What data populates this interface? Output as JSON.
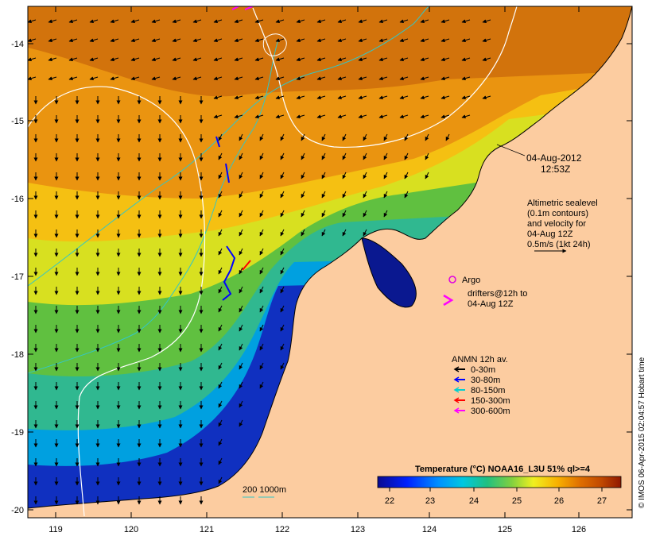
{
  "map": {
    "date_label": "04-Aug-2012",
    "time_label": "12:53Z",
    "lon_ticks": [
      "119",
      "120",
      "121",
      "122",
      "123",
      "124",
      "125",
      "126"
    ],
    "lat_ticks": [
      "-14",
      "-15",
      "-16",
      "-17",
      "-18",
      "-19",
      "-20"
    ],
    "colors": {
      "land": "#fccca0",
      "current_contour": "#ffffff",
      "isobath": "#33c6c6",
      "argo": "#e000e0",
      "drifter": "#ff00ff"
    }
  },
  "altimetry": {
    "lines": [
      "Altimetric sealevel",
      "(0.1m contours)",
      "and velocity for",
      "04-Aug 12Z",
      "0.5m/s (1kt 24h)"
    ]
  },
  "argo": {
    "label": "Argo"
  },
  "drifters": {
    "line1": "drifters@12h to",
    "line2": "04-Aug 12Z"
  },
  "anmn": {
    "title": "ANMN 12h av.",
    "items": [
      {
        "label": "0-30m",
        "color": "#000000"
      },
      {
        "label": "30-80m",
        "color": "#0000ff"
      },
      {
        "label": "80-150m",
        "color": "#00d0d0"
      },
      {
        "label": "150-300m",
        "color": "#ff0000"
      },
      {
        "label": "300-600m",
        "color": "#ff00ff"
      }
    ]
  },
  "isobath_legend": {
    "label": "200  1000m"
  },
  "colorbar": {
    "title": "Temperature (°C) NOAA16_L3U 51% ql>=4",
    "ticks": [
      "22",
      "23",
      "24",
      "25",
      "26",
      "27"
    ]
  },
  "side_text": "© IMOS 06-Apr-2015 02:04:57 Hobart time"
}
